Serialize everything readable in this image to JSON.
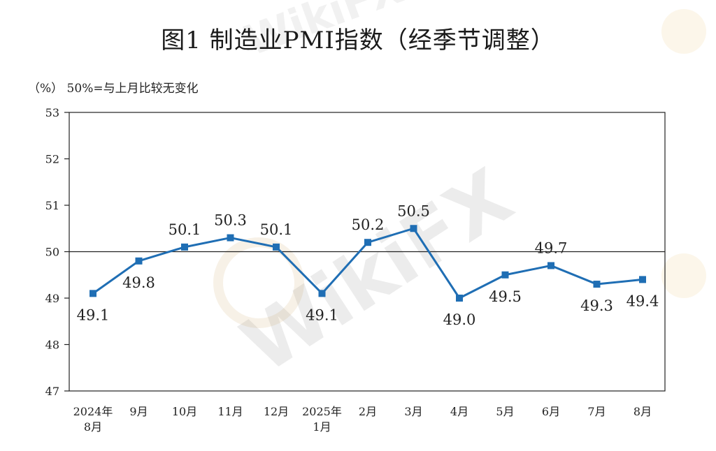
{
  "title": "图1  制造业PMI指数（经季节调整）",
  "subtitle": "（%） 50%=与上月比较无变化",
  "watermark": "WikiFX",
  "colors": {
    "series": "#1f6eb4",
    "axis": "#222222"
  },
  "chart_data": {
    "type": "line",
    "title": "图1  制造业PMI指数（经季节调整）",
    "ylabel": "（%）",
    "ylim": [
      47,
      53
    ],
    "yticks": [
      47,
      48,
      49,
      50,
      51,
      52,
      53
    ],
    "reference_line": 50,
    "categories": [
      [
        "2024年",
        "8月"
      ],
      [
        "9月"
      ],
      [
        "10月"
      ],
      [
        "11月"
      ],
      [
        "12月"
      ],
      [
        "2025年",
        "1月"
      ],
      [
        "2月"
      ],
      [
        "3月"
      ],
      [
        "4月"
      ],
      [
        "5月"
      ],
      [
        "6月"
      ],
      [
        "7月"
      ],
      [
        "8月"
      ]
    ],
    "series": [
      {
        "values": [
          49.1,
          49.8,
          50.1,
          50.3,
          50.1,
          49.1,
          50.2,
          50.5,
          49.0,
          49.5,
          49.7,
          49.3,
          49.4
        ]
      }
    ],
    "data_labels": [
      "49.1",
      "49.8",
      "50.1",
      "50.3",
      "50.1",
      "49.1",
      "50.2",
      "50.5",
      "49.0",
      "49.5",
      "49.7",
      "49.3",
      "49.4"
    ],
    "grid": false,
    "legend": "none"
  }
}
